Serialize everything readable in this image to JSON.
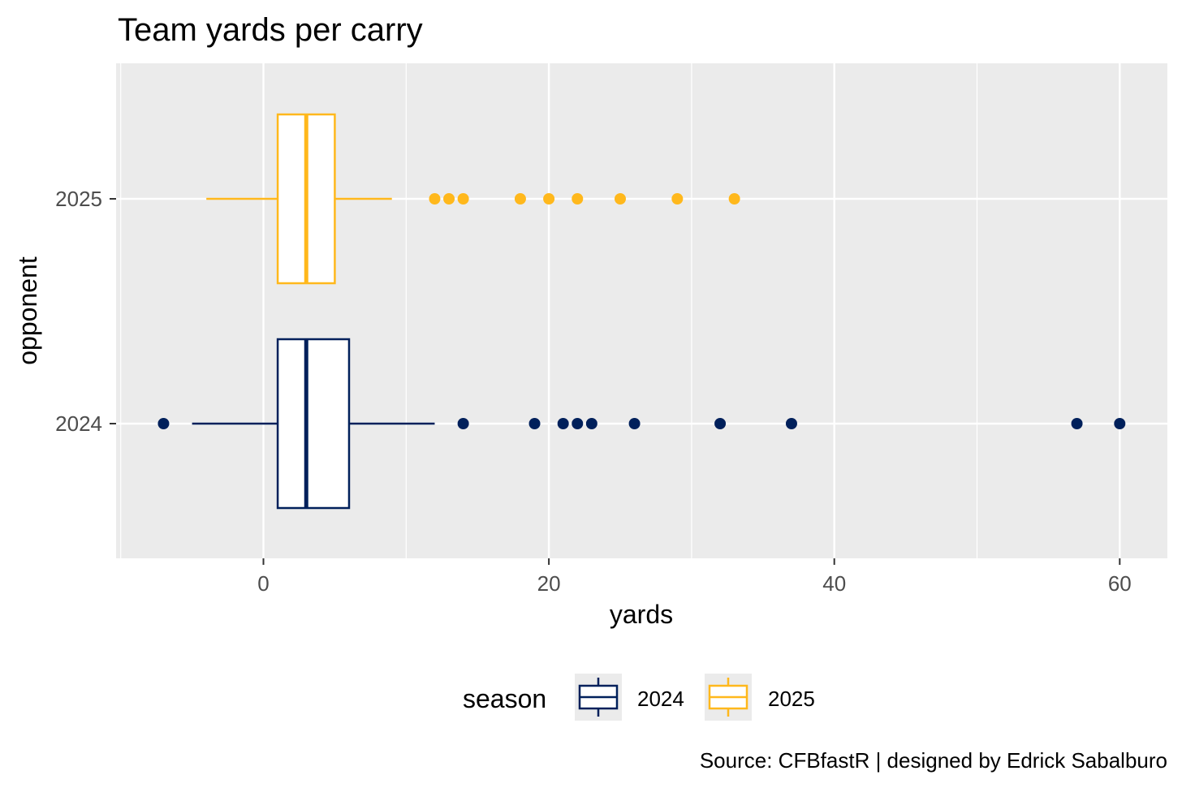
{
  "chart_data": {
    "type": "boxplot",
    "title": "Team yards per carry",
    "xlabel": "yards",
    "ylabel": "opponent",
    "xlim": [
      -10,
      63
    ],
    "x_ticks": [
      0,
      20,
      40,
      60
    ],
    "x_tick_labels": [
      "0",
      "20",
      "40",
      "60"
    ],
    "categories": [
      "2025",
      "2024"
    ],
    "legend": {
      "title": "season",
      "position": "bottom",
      "entries": [
        "2024",
        "2025"
      ]
    },
    "series": [
      {
        "name": "2025",
        "color": "#FFB81C",
        "category": "2025",
        "whisker_low": -4,
        "q1": 1,
        "median": 3,
        "q3": 5,
        "whisker_high": 9,
        "outliers": [
          12,
          13,
          14,
          18,
          20,
          22,
          25,
          29,
          33
        ]
      },
      {
        "name": "2024",
        "color": "#00205B",
        "category": "2024",
        "whisker_low": -5,
        "q1": 1,
        "median": 3,
        "q3": 6,
        "whisker_high": 12,
        "outliers": [
          -7,
          14,
          19,
          21,
          22,
          23,
          26,
          32,
          37,
          57,
          60
        ]
      }
    ],
    "caption": "Source: CFBfastR | designed by Edrick Sabalburo"
  }
}
